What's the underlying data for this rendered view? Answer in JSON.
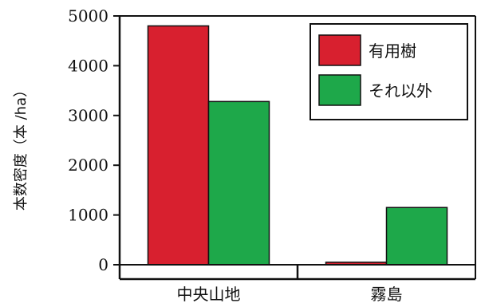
{
  "chart_data": {
    "type": "bar",
    "title": "",
    "xlabel": "",
    "ylabel": "本数密度（本 /ha）",
    "ylim": [
      0,
      5000
    ],
    "yticks": [
      0,
      1000,
      2000,
      3000,
      4000,
      5000
    ],
    "categories": [
      "中央山地",
      "霧島"
    ],
    "series": [
      {
        "name": "有用樹",
        "color": "#d8202f",
        "values": [
          4800,
          50
        ]
      },
      {
        "name": "それ以外",
        "color": "#1ea84a",
        "values": [
          3280,
          1150
        ]
      }
    ],
    "legend_position": "top-right",
    "grid": false
  }
}
